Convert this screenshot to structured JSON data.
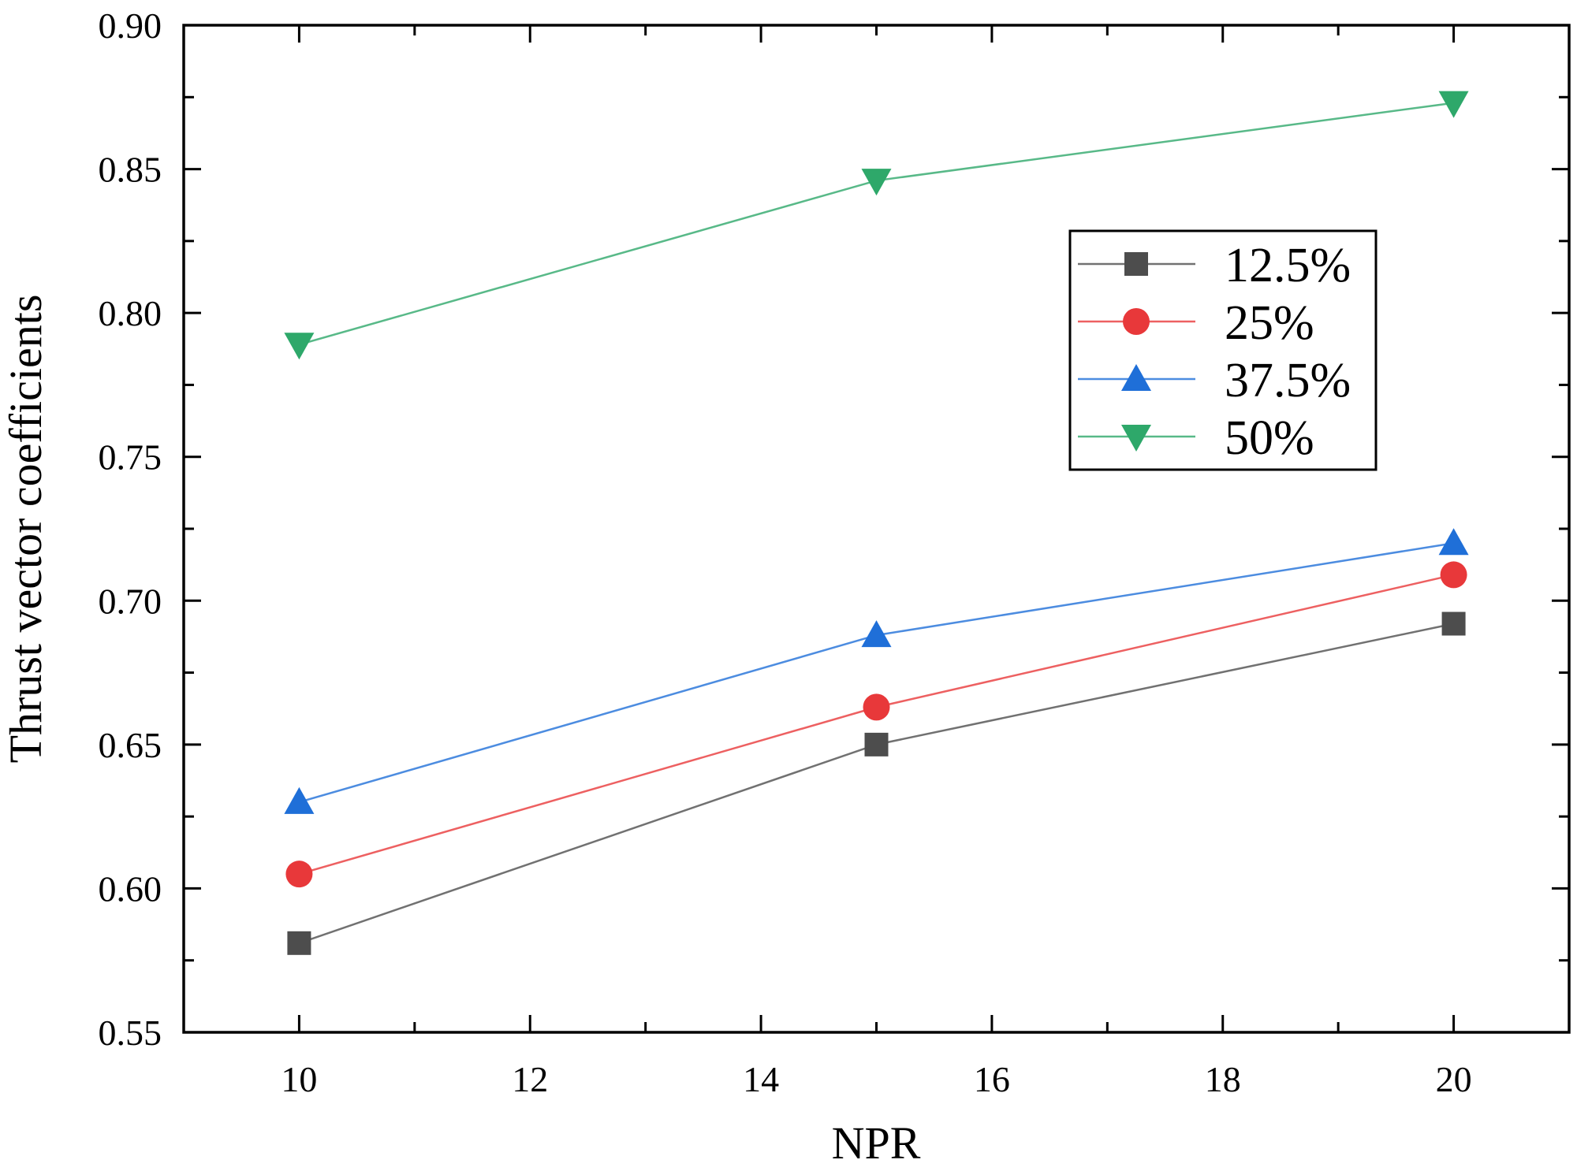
{
  "chart_data": {
    "type": "line",
    "title": "",
    "xlabel": "NPR",
    "ylabel": "Thrust vector coefficients",
    "xlim": [
      9,
      21
    ],
    "ylim": [
      0.55,
      0.9
    ],
    "xticks": [
      10,
      12,
      14,
      16,
      18,
      20
    ],
    "yticks": [
      "0.55",
      "0.60",
      "0.65",
      "0.70",
      "0.75",
      "0.80",
      "0.85",
      "0.90"
    ],
    "grid": false,
    "legend_position": "upper-right",
    "x": [
      10,
      15,
      20
    ],
    "series": [
      {
        "name": "12.5%",
        "values": [
          0.581,
          0.65,
          0.692
        ],
        "color": "#4d4d4d",
        "marker": "square"
      },
      {
        "name": "25%",
        "values": [
          0.605,
          0.663,
          0.709
        ],
        "color": "#e8383a",
        "marker": "circle"
      },
      {
        "name": "37.5%",
        "values": [
          0.63,
          0.688,
          0.72
        ],
        "color": "#1f6fd8",
        "marker": "triangle-up"
      },
      {
        "name": "50%",
        "values": [
          0.789,
          0.846,
          0.873
        ],
        "color": "#2ea86a",
        "marker": "triangle-down"
      }
    ]
  }
}
